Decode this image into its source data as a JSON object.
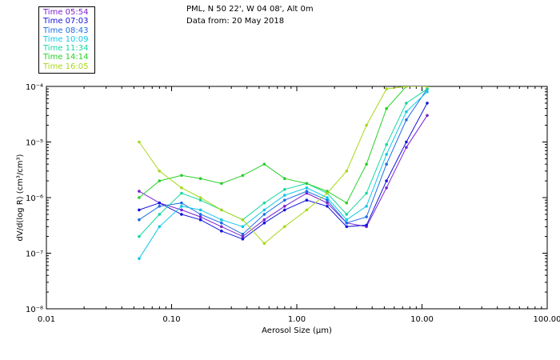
{
  "header": {
    "title": "PML, N 50 22', W 04 08', Alt 0m",
    "date": "Data from: 20 May 2018"
  },
  "legend": [
    {
      "label": "Time 05:54",
      "color": "#7b1fd4"
    },
    {
      "label": "Time 07:03",
      "color": "#1414dc"
    },
    {
      "label": "Time 08:43",
      "color": "#1e6ee6"
    },
    {
      "label": "Time 10:09",
      "color": "#10c8e8"
    },
    {
      "label": "Time 11:34",
      "color": "#18d8a0"
    },
    {
      "label": "Time 14:14",
      "color": "#28d028"
    },
    {
      "label": "Time 16:05",
      "color": "#a8d818"
    }
  ],
  "chart_data": {
    "type": "line",
    "xscale": "log",
    "yscale": "log",
    "xlim": [
      0.01,
      100
    ],
    "ylim": [
      1e-08,
      0.0001
    ],
    "xlabel": "Aerosol Size (μm)",
    "ylabel": "dV/d(log R) (cm³/cm³)",
    "xticks": [
      "0.01",
      "0.10",
      "1.00",
      "10.00",
      "100.00"
    ],
    "yticks": [
      "10⁻⁸",
      "10⁻⁷",
      "10⁻⁶",
      "10⁻⁵",
      "10⁻⁴"
    ],
    "x": [
      0.055,
      0.08,
      0.12,
      0.17,
      0.25,
      0.37,
      0.55,
      0.8,
      1.2,
      1.75,
      2.5,
      3.6,
      5.2,
      7.5,
      11.0
    ],
    "series": [
      {
        "name": "Time 05:54",
        "color": "#7b1fd4",
        "values": [
          1.3e-06,
          8e-07,
          6e-07,
          4.5e-07,
          3e-07,
          2e-07,
          4e-07,
          7e-07,
          1.2e-06,
          8e-07,
          3.5e-07,
          3e-07,
          1.5e-06,
          8e-06,
          3e-05
        ]
      },
      {
        "name": "Time 07:03",
        "color": "#1414dc",
        "values": [
          6e-07,
          8e-07,
          5e-07,
          4e-07,
          2.5e-07,
          1.8e-07,
          3.5e-07,
          6e-07,
          9e-07,
          7e-07,
          3e-07,
          3.2e-07,
          2e-06,
          1e-05,
          5e-05
        ]
      },
      {
        "name": "Time 08:43",
        "color": "#1e6ee6",
        "values": [
          4e-07,
          7e-07,
          8e-07,
          5e-07,
          3.5e-07,
          2.2e-07,
          5e-07,
          9e-07,
          1.3e-06,
          9e-07,
          3.5e-07,
          4.5e-07,
          4e-06,
          2.5e-05,
          9e-05
        ]
      },
      {
        "name": "Time 10:09",
        "color": "#10c8e8",
        "values": [
          8e-08,
          3e-07,
          7e-07,
          6e-07,
          4e-07,
          3e-07,
          6e-07,
          1.1e-06,
          1.5e-06,
          1e-06,
          4e-07,
          7e-07,
          6e-06,
          3.5e-05,
          8e-05
        ]
      },
      {
        "name": "Time 11:34",
        "color": "#18d8a0",
        "values": [
          2e-07,
          5e-07,
          1.2e-06,
          9e-07,
          6e-07,
          4e-07,
          8e-07,
          1.4e-06,
          1.8e-06,
          1.2e-06,
          5e-07,
          1.2e-06,
          9e-06,
          5e-05,
          9e-05
        ]
      },
      {
        "name": "Time 14:14",
        "color": "#28d028",
        "values": [
          1e-06,
          2e-06,
          2.5e-06,
          2.2e-06,
          1.8e-06,
          2.5e-06,
          4e-06,
          2.2e-06,
          1.8e-06,
          1.3e-06,
          8e-07,
          4e-06,
          4e-05,
          0.0001,
          0.0001
        ]
      },
      {
        "name": "Time 16:05",
        "color": "#a8d818",
        "values": [
          1e-05,
          3e-06,
          1.5e-06,
          1e-06,
          6e-07,
          4e-07,
          1.5e-07,
          3e-07,
          6e-07,
          1.2e-06,
          3e-06,
          2e-05,
          9e-05,
          0.0001,
          0.0001
        ]
      }
    ]
  }
}
